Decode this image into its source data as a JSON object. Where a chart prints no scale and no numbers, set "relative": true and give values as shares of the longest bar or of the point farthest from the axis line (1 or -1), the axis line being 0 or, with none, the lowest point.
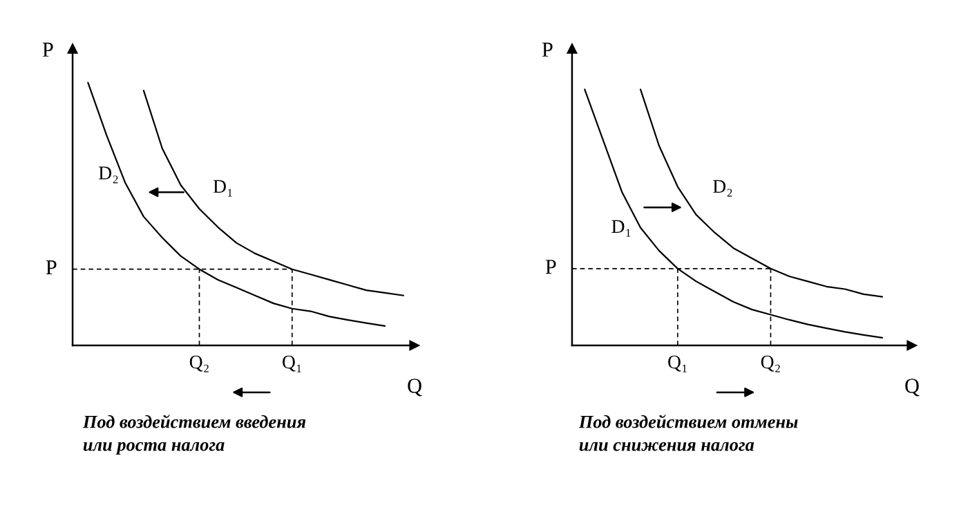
{
  "chart_data": [
    {
      "type": "line",
      "relative": true,
      "xlabel": "Q",
      "ylabel": "P",
      "categories": [
        null,
        null,
        null,
        null,
        null,
        null,
        "Q₂",
        null,
        null,
        null,
        null,
        "Q₁",
        null,
        null,
        null,
        null,
        null,
        null
      ],
      "series": [
        {
          "name": "D₂",
          "color": "#000000",
          "values": [
            1.0,
            0.8,
            0.62,
            0.49,
            0.41,
            0.34,
            0.29,
            0.25,
            0.22,
            0.19,
            0.16,
            0.14,
            0.13,
            0.11,
            0.097,
            0.085,
            0.074,
            null
          ]
        },
        {
          "name": "D₁",
          "color": "#000000",
          "values": [
            null,
            null,
            null,
            0.97,
            0.75,
            0.61,
            0.52,
            0.45,
            0.39,
            0.35,
            0.32,
            0.29,
            0.27,
            0.25,
            0.23,
            0.21,
            0.2,
            0.19
          ]
        }
      ],
      "ref_lines": [
        {
          "axis": "y",
          "value": 0.29,
          "label": "P",
          "color": "#000000",
          "line_style": "dashed"
        },
        {
          "axis": "x",
          "value": "Q₂",
          "color": "#000000",
          "line_style": "dashed"
        },
        {
          "axis": "x",
          "value": "Q₁",
          "color": "#000000",
          "line_style": "dashed"
        }
      ],
      "annotations": [
        "Под воздействием введения\nили роста налога"
      ]
    },
    {
      "type": "line",
      "relative": true,
      "xlabel": "Q",
      "ylabel": "P",
      "categories": [
        null,
        null,
        null,
        null,
        null,
        "Q₁",
        null,
        null,
        null,
        null,
        "Q₂",
        null,
        null,
        null,
        null,
        null,
        null,
        null
      ],
      "series": [
        {
          "name": "D₁",
          "color": "#000000",
          "values": [
            1.0,
            0.8,
            0.6,
            0.46,
            0.37,
            0.3,
            0.25,
            0.21,
            0.17,
            0.14,
            0.12,
            0.1,
            0.082,
            0.067,
            0.053,
            0.041,
            0.03,
            null
          ]
        },
        {
          "name": "D₂",
          "color": "#000000",
          "values": [
            null,
            null,
            null,
            1.0,
            0.78,
            0.62,
            0.51,
            0.44,
            0.38,
            0.34,
            0.3,
            0.27,
            0.25,
            0.23,
            0.22,
            0.2,
            0.19,
            null
          ]
        }
      ],
      "ref_lines": [
        {
          "axis": "y",
          "value": 0.3,
          "label": "P",
          "color": "#000000",
          "line_style": "dashed"
        },
        {
          "axis": "x",
          "value": "Q₁",
          "color": "#000000",
          "line_style": "dashed"
        },
        {
          "axis": "x",
          "value": "Q₂",
          "color": "#000000",
          "line_style": "dashed"
        }
      ],
      "annotations": [
        "Под воздействием отмены\nили снижения налога"
      ]
    }
  ]
}
